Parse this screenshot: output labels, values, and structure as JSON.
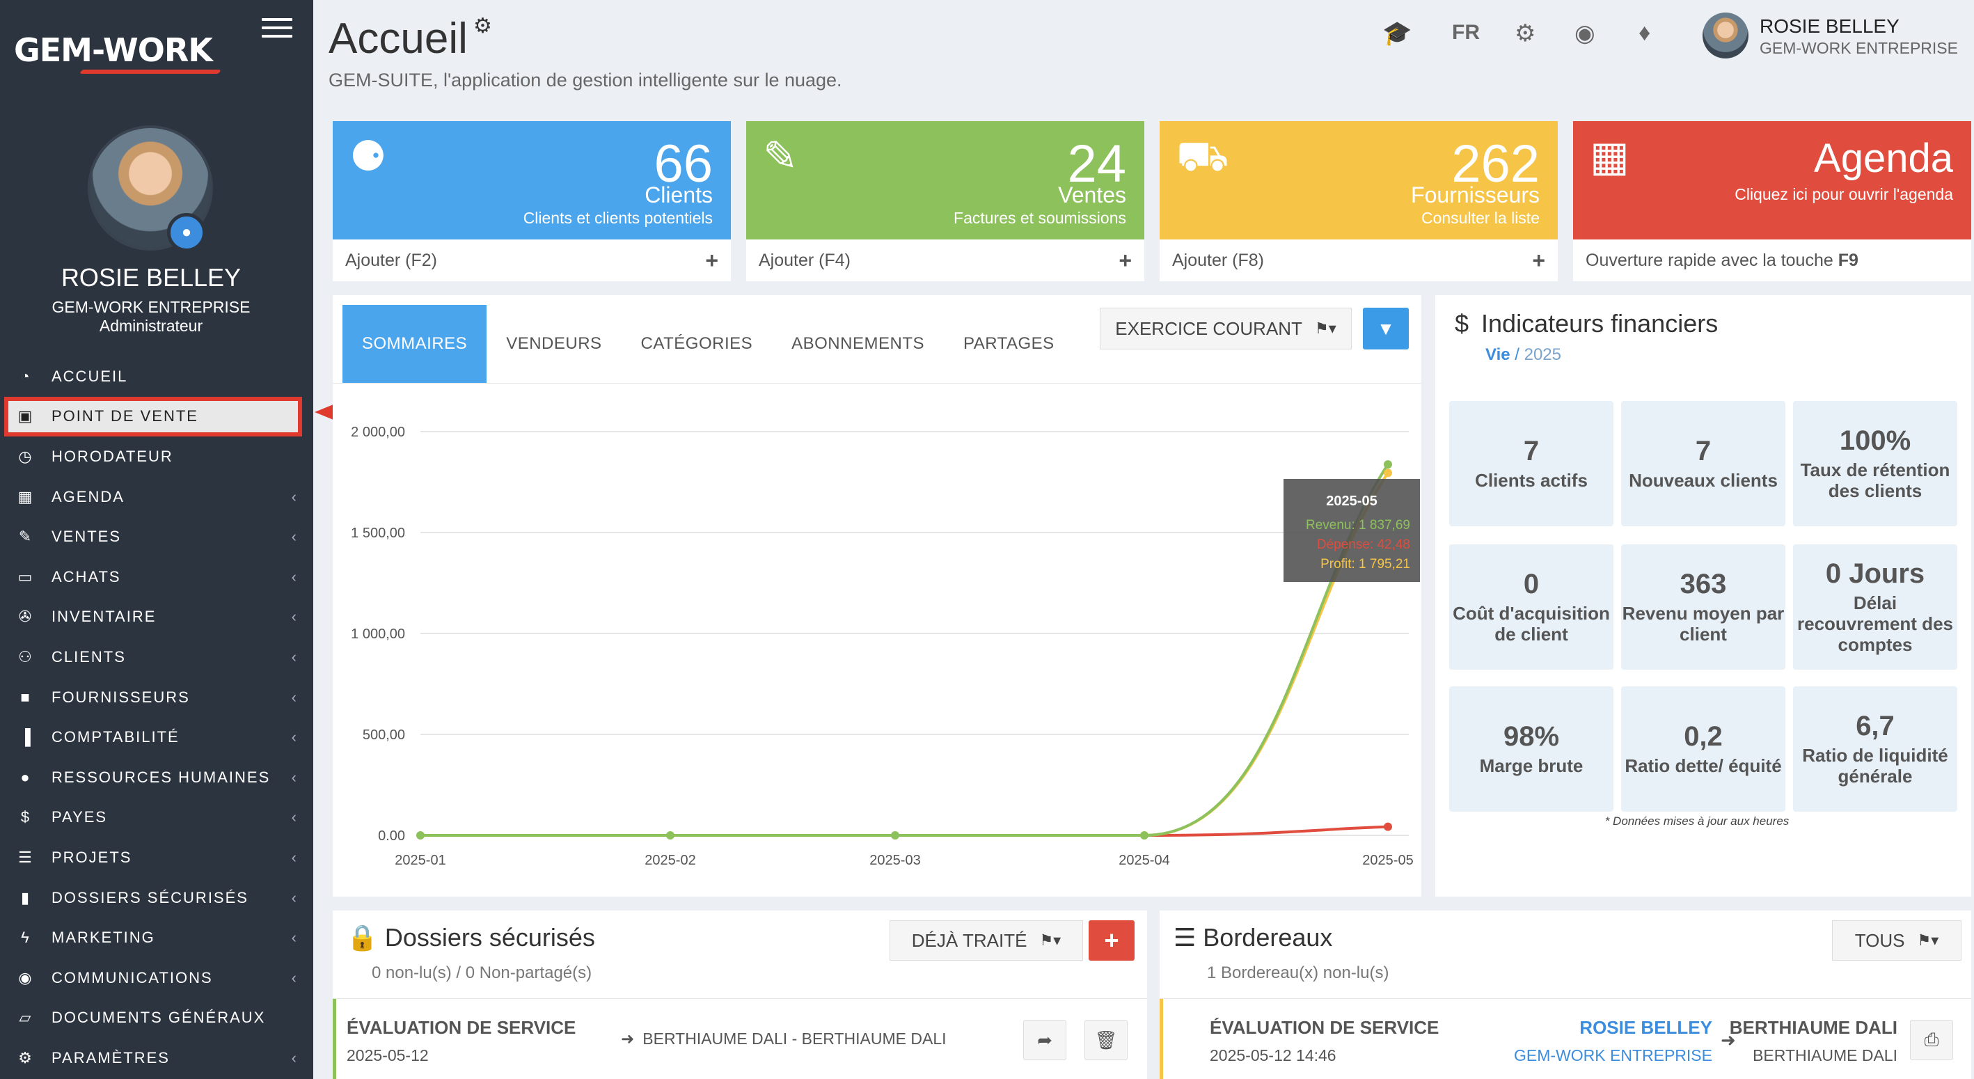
{
  "app": {
    "logo": "GEM-WORK"
  },
  "user": {
    "name": "ROSIE BELLEY",
    "company": "GEM-WORK ENTREPRISE",
    "role": "Administrateur"
  },
  "header": {
    "title": "Accueil",
    "subtitle": "GEM-SUITE, l'application de gestion intelligente sur le nuage.",
    "lang": "FR",
    "user_name": "ROSIE BELLEY",
    "user_company": "GEM-WORK ENTREPRISE"
  },
  "sidebar": {
    "items": [
      {
        "label": "ACCUEIL",
        "icon": "dashboard-icon",
        "glyph": "◔",
        "chevron": false
      },
      {
        "label": "POINT DE VENTE",
        "icon": "money-icon",
        "glyph": "▣",
        "chevron": false,
        "active": true
      },
      {
        "label": "HORODATEUR",
        "icon": "clock-icon",
        "glyph": "◷",
        "chevron": false
      },
      {
        "label": "AGENDA",
        "icon": "calendar-icon",
        "glyph": "▦",
        "chevron": true
      },
      {
        "label": "VENTES",
        "icon": "edit-icon",
        "glyph": "✎",
        "chevron": true
      },
      {
        "label": "ACHATS",
        "icon": "credit-card-icon",
        "glyph": "▭",
        "chevron": true
      },
      {
        "label": "INVENTAIRE",
        "icon": "cart-icon",
        "glyph": "✇",
        "chevron": true
      },
      {
        "label": "CLIENTS",
        "icon": "users-icon",
        "glyph": "⚇",
        "chevron": true
      },
      {
        "label": "FOURNISSEURS",
        "icon": "truck-icon",
        "glyph": "■",
        "chevron": true
      },
      {
        "label": "COMPTABILITÉ",
        "icon": "bar-chart-icon",
        "glyph": "▐",
        "chevron": true
      },
      {
        "label": "RESSOURCES HUMAINES",
        "icon": "user-icon",
        "glyph": "●",
        "chevron": true
      },
      {
        "label": "PAYES",
        "icon": "dollar-icon",
        "glyph": "$",
        "chevron": true
      },
      {
        "label": "PROJETS",
        "icon": "tasks-icon",
        "glyph": "☰",
        "chevron": true
      },
      {
        "label": "DOSSIERS SÉCURISÉS",
        "icon": "lock-icon",
        "glyph": "▮",
        "chevron": true
      },
      {
        "label": "MARKETING",
        "icon": "bolt-icon",
        "glyph": "ϟ",
        "chevron": true
      },
      {
        "label": "COMMUNICATIONS",
        "icon": "comments-icon",
        "glyph": "◉",
        "chevron": true
      },
      {
        "label": "DOCUMENTS GÉNÉRAUX",
        "icon": "folder-open-icon",
        "glyph": "▱",
        "chevron": false
      },
      {
        "label": "PARAMÈTRES",
        "icon": "gear-icon",
        "glyph": "⚙",
        "chevron": true
      }
    ]
  },
  "stats": [
    {
      "name": "clients",
      "number": "66",
      "label": "Clients",
      "sub": "Clients et clients potentiels",
      "footer": "Ajouter (F2)",
      "icon": "users-icon",
      "color": "#4ba5ec"
    },
    {
      "name": "ventes",
      "number": "24",
      "label": "Ventes",
      "sub": "Factures et soumissions",
      "footer": "Ajouter (F4)",
      "icon": "edit-icon",
      "color": "#8dc15b"
    },
    {
      "name": "fournisseurs",
      "number": "262",
      "label": "Fournisseurs",
      "sub": "Consulter la liste",
      "footer": "Ajouter (F8)",
      "icon": "truck-icon",
      "color": "#f6c447"
    },
    {
      "name": "agenda",
      "number": "Agenda",
      "label": "",
      "sub": "Cliquez ici pour ouvrir l'agenda",
      "footer": "Ouverture rapide avec la touche",
      "footer_key": "F9",
      "icon": "calendar-icon",
      "color": "#e04d3f"
    }
  ],
  "chart_panel": {
    "tabs": [
      "SOMMAIRES",
      "VENDEURS",
      "CATÉGORIES",
      "ABONNEMENTS",
      "PARTAGES"
    ],
    "period": "EXERCICE COURANT"
  },
  "chart_data": {
    "type": "line",
    "x": [
      "2025-01",
      "2025-02",
      "2025-03",
      "2025-04",
      "2025-05"
    ],
    "series": [
      {
        "name": "Revenu",
        "values": [
          0,
          0,
          0,
          0,
          1837.69
        ],
        "color": "#8dc15b"
      },
      {
        "name": "Dépense",
        "values": [
          0,
          0,
          0,
          0,
          42.48
        ],
        "color": "#e04d3f"
      },
      {
        "name": "Profit",
        "values": [
          0,
          0,
          0,
          0,
          1795.21
        ],
        "color": "#f6c447"
      }
    ],
    "yticks": [
      "2 000,00",
      "1 500,00",
      "1 000,00",
      "500,00",
      "0.00"
    ],
    "ylim": [
      0,
      2000
    ],
    "grid": true,
    "tooltip": {
      "title": "2025-05",
      "lines": [
        "Revenu: 1 837,69",
        "Dépense: 42,48",
        "Profit: 1 795,21"
      ]
    }
  },
  "indicators": {
    "title": "Indicateurs financiers",
    "scope": "Vie",
    "year": "2025",
    "kpis": [
      {
        "value": "7",
        "label": "Clients actifs"
      },
      {
        "value": "7",
        "label": "Nouveaux clients"
      },
      {
        "value": "100%",
        "label": "Taux de rétention des clients"
      },
      {
        "value": "0",
        "label": "Coût d'acquisition de client"
      },
      {
        "value": "363",
        "label": "Revenu moyen par client"
      },
      {
        "value": "0 Jours",
        "label": "Délai recouvrement des comptes"
      },
      {
        "value": "98%",
        "label": "Marge brute"
      },
      {
        "value": "0,2",
        "label": "Ratio dette/ équité"
      },
      {
        "value": "6,7",
        "label": "Ratio de liquidité générale"
      }
    ],
    "note": "* Données mises à jour aux heures"
  },
  "dossiers": {
    "title": "Dossiers sécurisés",
    "subtitle": "0 non-lu(s) / 0 Non-partagé(s)",
    "filter": "DÉJÀ TRAITÉ",
    "row": {
      "title": "ÉVALUATION DE SERVICE",
      "date": "2025-05-12",
      "target": "BERTHIAUME DALI - BERTHIAUME DALI"
    }
  },
  "bordereaux": {
    "title": "Bordereaux",
    "subtitle": "1 Bordereau(x) non-lu(s)",
    "filter": "TOUS",
    "row": {
      "title": "ÉVALUATION DE SERVICE",
      "date": "2025-05-12 14:46",
      "from_name": "ROSIE BELLEY",
      "from_company": "GEM-WORK ENTREPRISE",
      "to_name": "BERTHIAUME DALI",
      "to_company": "BERTHIAUME DALI"
    }
  }
}
